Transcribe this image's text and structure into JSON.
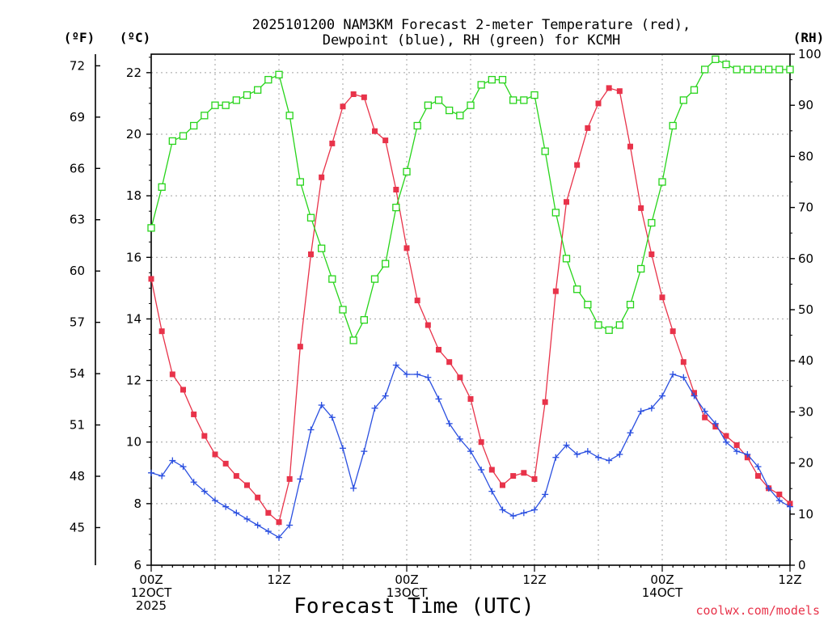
{
  "chart_data": {
    "type": "line",
    "title_line1": "2025101200 NAM3KM Forecast 2-meter Temperature (red),",
    "title_line2": "Dewpoint (blue), RH (green) for KCMH",
    "xlabel": "Forecast Time (UTC)",
    "credit": "coolwx.com/models",
    "unit_f": "(ºF)",
    "unit_c": "(ºC)",
    "unit_rh": "(RH)",
    "x_range": [
      0,
      60
    ],
    "c_range": [
      6,
      22.6
    ],
    "rh_range": [
      0,
      100
    ],
    "c_ticks": [
      "6",
      "8",
      "10",
      "12",
      "14",
      "16",
      "18",
      "20",
      "22"
    ],
    "f_ticks": [
      "45",
      "48",
      "51",
      "54",
      "57",
      "60",
      "63",
      "66",
      "69",
      "72"
    ],
    "rh_ticks": [
      "0",
      "10",
      "20",
      "30",
      "40",
      "50",
      "60",
      "70",
      "80",
      "90",
      "100"
    ],
    "x_ticks": [
      {
        "hour": 0,
        "lines": [
          "00Z",
          "12OCT",
          "2025"
        ]
      },
      {
        "hour": 12,
        "lines": [
          "12Z"
        ]
      },
      {
        "hour": 24,
        "lines": [
          "00Z",
          "13OCT"
        ]
      },
      {
        "hour": 36,
        "lines": [
          "12Z"
        ]
      },
      {
        "hour": 48,
        "lines": [
          "00Z",
          "14OCT"
        ]
      },
      {
        "hour": 60,
        "lines": [
          "12Z"
        ]
      }
    ],
    "colors": {
      "temperature": "#e8334a",
      "dewpoint": "#2a4fe0",
      "rh": "#27d41a",
      "grid": "#a0a0a0"
    },
    "hours": [
      0,
      1,
      2,
      3,
      4,
      5,
      6,
      7,
      8,
      9,
      10,
      11,
      12,
      13,
      14,
      15,
      16,
      17,
      18,
      19,
      20,
      21,
      22,
      23,
      24,
      25,
      26,
      27,
      28,
      29,
      30,
      31,
      32,
      33,
      34,
      35,
      36,
      37,
      38,
      39,
      40,
      41,
      42,
      43,
      44,
      45,
      46,
      47,
      48,
      49,
      50,
      51,
      52,
      53,
      54,
      55,
      56,
      57,
      58,
      59,
      60
    ],
    "series": [
      {
        "name": "Temperature (red)",
        "unit": "C",
        "values": [
          15.3,
          13.6,
          12.2,
          11.7,
          10.9,
          10.2,
          9.6,
          9.3,
          8.9,
          8.6,
          8.2,
          7.7,
          7.4,
          8.8,
          13.1,
          16.1,
          18.6,
          19.7,
          20.9,
          21.3,
          21.2,
          20.1,
          19.8,
          18.2,
          16.3,
          14.6,
          13.8,
          13.0,
          12.6,
          12.1,
          11.4,
          10.0,
          9.1,
          8.6,
          8.9,
          9.0,
          8.8,
          11.3,
          14.9,
          17.8,
          19.0,
          20.2,
          21.0,
          21.5,
          21.4,
          19.6,
          17.6,
          16.1,
          14.7,
          13.6,
          12.6,
          11.6,
          10.8,
          10.5,
          10.2,
          9.9,
          9.5,
          8.9,
          8.5,
          8.3,
          8.0
        ]
      },
      {
        "name": "Dewpoint (blue)",
        "unit": "C",
        "values": [
          9.0,
          8.9,
          9.4,
          9.2,
          8.7,
          8.4,
          8.1,
          7.9,
          7.7,
          7.5,
          7.3,
          7.1,
          6.9,
          7.3,
          8.8,
          10.4,
          11.2,
          10.8,
          9.8,
          8.5,
          9.7,
          11.1,
          11.5,
          12.5,
          12.2,
          12.2,
          12.1,
          11.4,
          10.6,
          10.1,
          9.7,
          9.1,
          8.4,
          7.8,
          7.6,
          7.7,
          7.8,
          8.3,
          9.5,
          9.9,
          9.6,
          9.7,
          9.5,
          9.4,
          9.6,
          10.3,
          11.0,
          11.1,
          11.5,
          12.2,
          12.1,
          11.5,
          11.0,
          10.6,
          10.0,
          9.7,
          9.6,
          9.2,
          8.5,
          8.1,
          7.9
        ]
      },
      {
        "name": "RH (green)",
        "unit": "%",
        "values": [
          66,
          74,
          83,
          84,
          86,
          88,
          90,
          90,
          91,
          92,
          93,
          95,
          96,
          88,
          75,
          68,
          62,
          56,
          50,
          44,
          48,
          56,
          59,
          70,
          77,
          86,
          90,
          91,
          89,
          88,
          90,
          94,
          95,
          95,
          91,
          91,
          92,
          81,
          69,
          60,
          54,
          51,
          47,
          46,
          47,
          51,
          58,
          67,
          75,
          86,
          91,
          93,
          97,
          99,
          98,
          97,
          97,
          97,
          97,
          97,
          97
        ]
      }
    ]
  }
}
